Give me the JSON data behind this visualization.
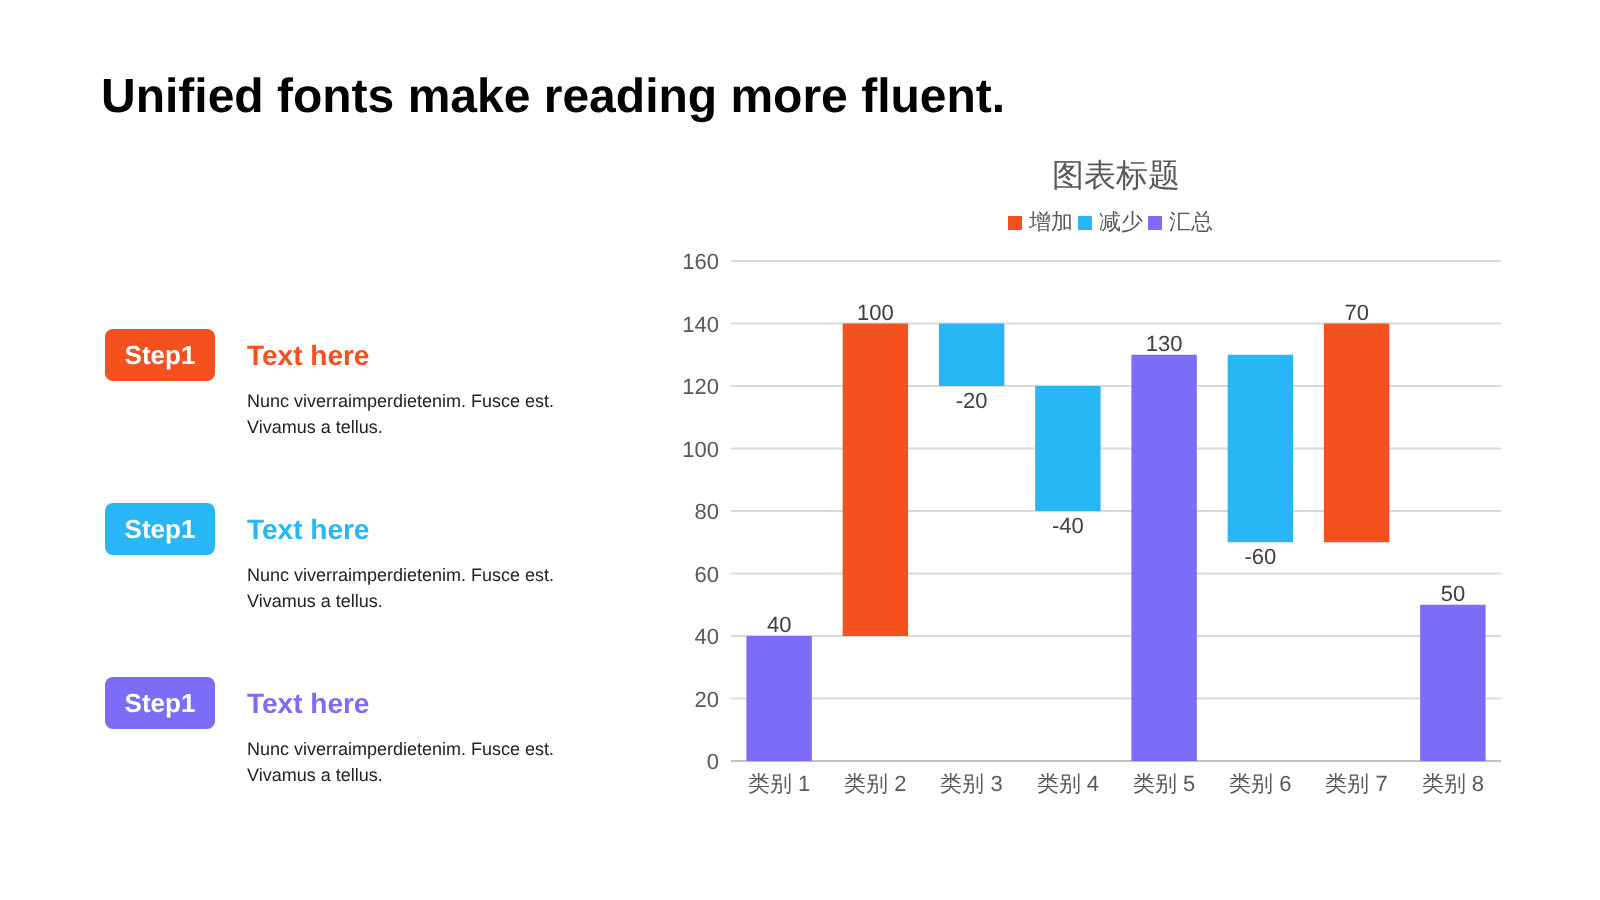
{
  "chart_data": {
    "type": "bar",
    "title": "图表标题",
    "categories": [
      "类别 1",
      "类别 2",
      "类别 3",
      "类别 4",
      "类别 5",
      "类别 6",
      "类别 7",
      "类别 8"
    ],
    "series": [
      {
        "name": "增加",
        "color": "#f4511e",
        "values": [
          null,
          100,
          null,
          null,
          null,
          null,
          70,
          null
        ],
        "base": [
          null,
          40,
          null,
          null,
          null,
          null,
          70,
          null
        ]
      },
      {
        "name": "减少",
        "color": "#29b6f6",
        "values": [
          null,
          null,
          -20,
          -40,
          null,
          -60,
          null,
          null
        ],
        "base": [
          null,
          null,
          140,
          120,
          null,
          130,
          null,
          null
        ]
      },
      {
        "name": "汇总",
        "color": "#7c6cf7",
        "values": [
          40,
          null,
          null,
          null,
          130,
          null,
          null,
          50
        ],
        "base": [
          0,
          null,
          null,
          null,
          0,
          null,
          null,
          0
        ]
      }
    ],
    "ylim": [
      0,
      160
    ],
    "yticks": [
      0,
      20,
      40,
      60,
      80,
      100,
      120,
      140,
      160
    ],
    "grid": "y",
    "legend": "top",
    "data_labels": true,
    "annotations": [
      "Unified fonts make reading more fluent.",
      "Step1",
      "Text here",
      "Nunc viverraimperdietenim. Fusce est.\nVivamus a tellus.",
      "Step1",
      "Text here",
      "Nunc viverraimperdietenim. Fusce est.\nVivamus a tellus.",
      "Step1",
      "Text here",
      "Nunc viverraimperdietenim. Fusce est.\nVivamus a tellus."
    ]
  }
}
